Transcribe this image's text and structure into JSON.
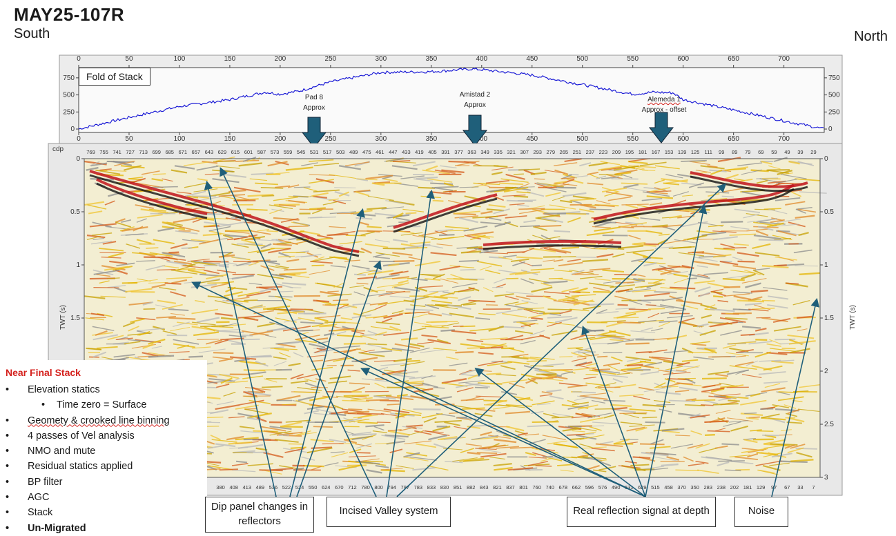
{
  "header": {
    "title": "MAY25-107R",
    "left_direction": "South",
    "right_direction": "North"
  },
  "fold_panel": {
    "label": "Fold of Stack",
    "x_ticks": [
      "0",
      "50",
      "100",
      "150",
      "200",
      "250",
      "300",
      "350",
      "400",
      "450",
      "500",
      "550",
      "600",
      "650",
      "700"
    ],
    "y_ticks": [
      "0",
      "250",
      "500",
      "750"
    ]
  },
  "wells": [
    {
      "name": "Pad 8",
      "note": "Approx"
    },
    {
      "name": "Amistad 2",
      "note": "Approx"
    },
    {
      "name": "Alemeda 1",
      "note": "Approx - offset"
    }
  ],
  "seismic_panel": {
    "top_axis_label": "cdp",
    "cdp_top": [
      "769",
      "755",
      "741",
      "727",
      "713",
      "699",
      "685",
      "671",
      "657",
      "643",
      "629",
      "615",
      "601",
      "587",
      "573",
      "559",
      "545",
      "531",
      "517",
      "503",
      "489",
      "475",
      "461",
      "447",
      "433",
      "419",
      "405",
      "391",
      "377",
      "363",
      "349",
      "335",
      "321",
      "307",
      "293",
      "279",
      "265",
      "251",
      "237",
      "223",
      "209",
      "195",
      "181",
      "167",
      "153",
      "139",
      "125",
      "111",
      "99",
      "89",
      "79",
      "69",
      "59",
      "49",
      "39",
      "29"
    ],
    "cdp_bottom": [
      "380",
      "408",
      "413",
      "489",
      "536",
      "522",
      "524",
      "550",
      "624",
      "670",
      "712",
      "780",
      "800",
      "794",
      "797",
      "783",
      "833",
      "830",
      "851",
      "882",
      "843",
      "821",
      "837",
      "801",
      "760",
      "740",
      "678",
      "662",
      "596",
      "576",
      "490",
      "631",
      "629",
      "515",
      "458",
      "370",
      "350",
      "283",
      "238",
      "202",
      "181",
      "129",
      "97",
      "67",
      "33",
      "7"
    ],
    "y_axis_label": "TWT (s)",
    "y_ticks_left": [
      "0",
      "0.5",
      "1",
      "1.5"
    ],
    "y_ticks_right": [
      "0",
      "0.5",
      "1",
      "1.5",
      "2",
      "2.5",
      "3"
    ]
  },
  "notes": {
    "heading": "Near Final Stack",
    "items": [
      {
        "text": "Elevation statics"
      },
      {
        "text": "Time zero = Surface"
      },
      {
        "text": "Geomety & crooked line binning"
      },
      {
        "text": "4 passes of Vel analysis"
      },
      {
        "text": "NMO and mute"
      },
      {
        "text": "Residual statics applied"
      },
      {
        "text": "BP filter"
      },
      {
        "text": "AGC"
      },
      {
        "text": "Stack"
      },
      {
        "text": "Un-Migrated"
      }
    ]
  },
  "callouts": {
    "dip": "Dip panel changes in reflectors",
    "valley": "Incised Valley system",
    "real": "Real reflection signal at depth",
    "noise": "Noise"
  },
  "colors": {
    "fold_line": "#1a1ad6",
    "arrow": "#1f5f7a",
    "notes_heading": "#d4201c"
  },
  "chart_data": {
    "type": "line",
    "title": "Fold of Stack",
    "xlabel": "",
    "ylabel": "",
    "xlim": [
      0,
      750
    ],
    "ylim": [
      -50,
      900
    ],
    "series": [
      {
        "x": [
          0,
          50,
          100,
          150,
          185,
          200,
          220,
          250,
          300,
          350,
          390,
          400,
          450,
          500,
          550,
          570,
          590,
          600,
          650,
          700,
          740
        ],
        "y": [
          0,
          170,
          330,
          430,
          540,
          510,
          560,
          690,
          830,
          840,
          880,
          870,
          790,
          650,
          510,
          540,
          530,
          430,
          280,
          120,
          0
        ]
      }
    ]
  }
}
